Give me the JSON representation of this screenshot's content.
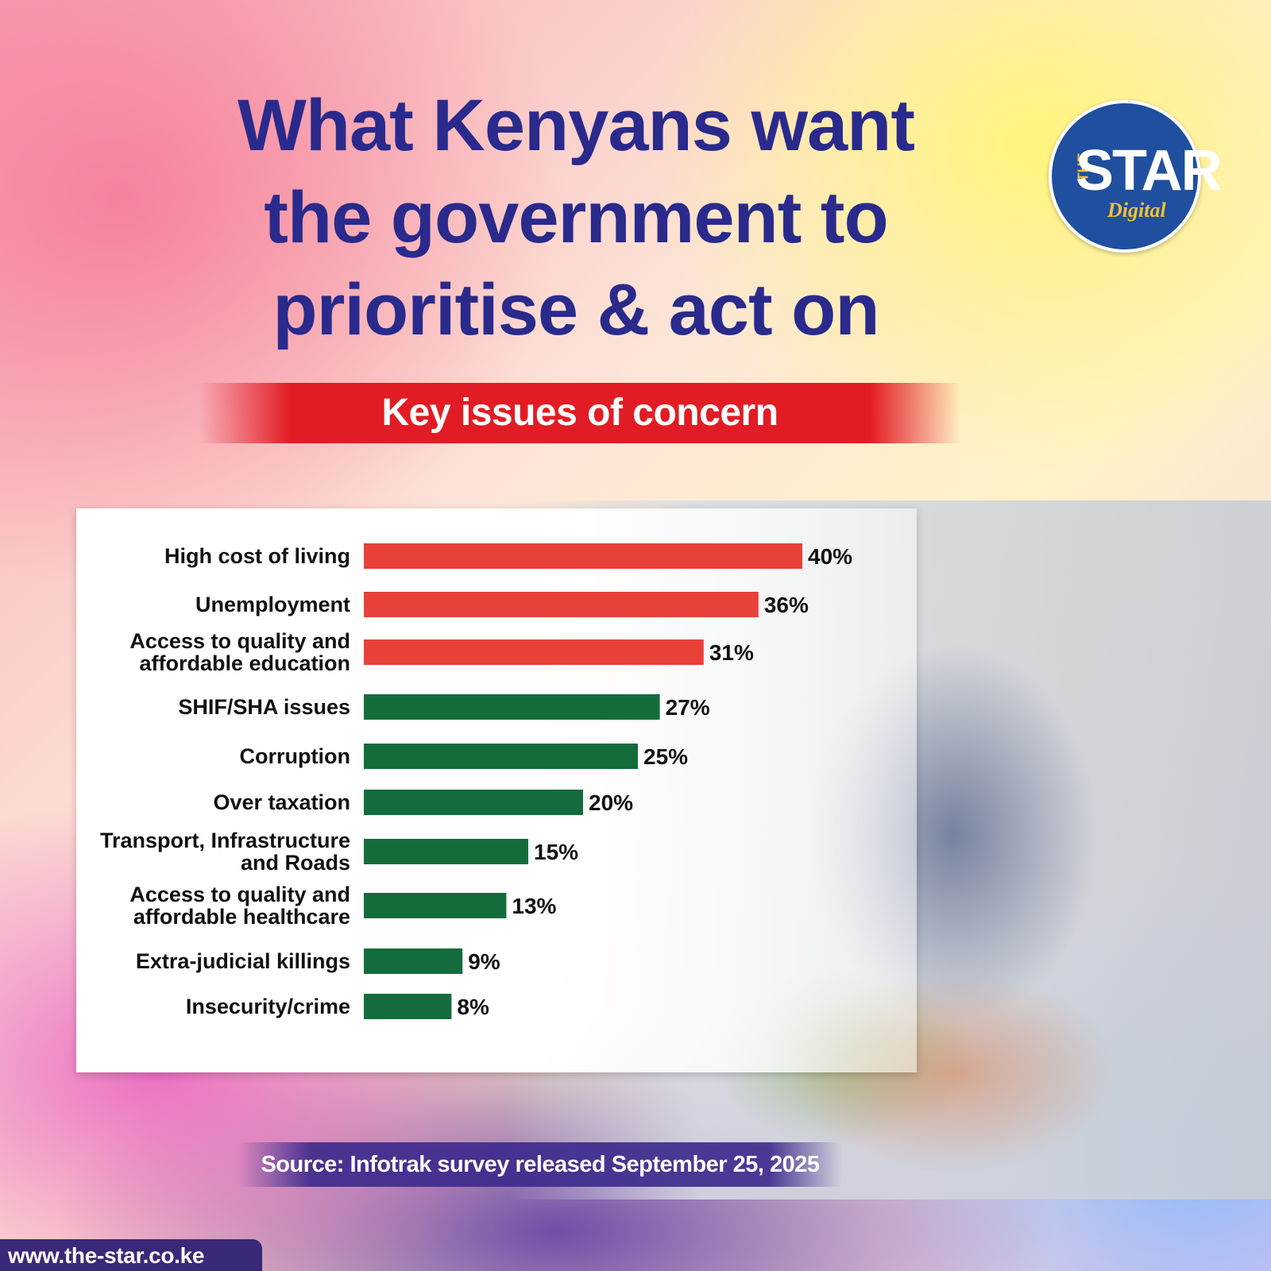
{
  "header": {
    "title_lines": [
      "What Kenyans want",
      "the government to",
      "prioritise & act on"
    ],
    "banner": "Key issues of concern"
  },
  "logo": {
    "small": "THE",
    "main": "STAR",
    "sub": "Digital"
  },
  "chart_data": {
    "type": "bar",
    "orientation": "horizontal",
    "title": "Key issues of concern",
    "categories": [
      [
        "High cost of living"
      ],
      [
        "Unemployment"
      ],
      [
        "Access to quality and",
        "affordable education"
      ],
      [
        "SHIF/SHA issues"
      ],
      [
        "Corruption"
      ],
      [
        "Over taxation"
      ],
      [
        "Transport, Infrastructure",
        "and Roads"
      ],
      [
        "Access to quality and",
        "affordable healthcare"
      ],
      [
        "Extra-judicial killings"
      ],
      [
        "Insecurity/crime"
      ]
    ],
    "values": [
      40,
      36,
      31,
      27,
      25,
      20,
      15,
      13,
      9,
      8
    ],
    "value_labels": [
      "40%",
      "36%",
      "31%",
      "27%",
      "25%",
      "20%",
      "15%",
      "13%",
      "9%",
      "8%"
    ],
    "bar_colors": [
      "#e8413a",
      "#e8413a",
      "#e8413a",
      "#146c3c",
      "#146c3c",
      "#146c3c",
      "#146c3c",
      "#146c3c",
      "#146c3c",
      "#146c3c"
    ],
    "xlim": [
      0,
      40
    ],
    "grid": false,
    "legend": "none"
  },
  "footer": {
    "source": "Source: Infotrak survey released September 25, 2025",
    "url": "www.the-star.co.ke"
  },
  "colors": {
    "title": "#2a2a8c",
    "banner": "#e21c24",
    "red_bar": "#e8413a",
    "green_bar": "#146c3c"
  }
}
